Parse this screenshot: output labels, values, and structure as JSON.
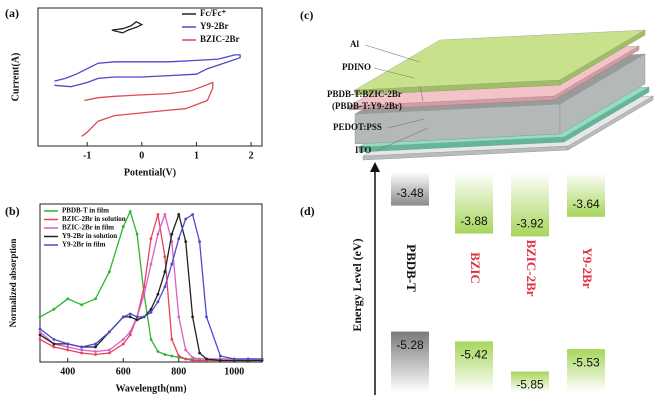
{
  "chart_data": [
    {
      "type": "line",
      "label": "(a)",
      "xlabel": "Potential(V)",
      "ylabel": "Current(A)",
      "xlim": [
        -1.9,
        2.2
      ],
      "xticks": [
        -1,
        0,
        1,
        2
      ],
      "ylim": [
        0,
        1
      ],
      "series": [
        {
          "name": "Fc/Fc⁺",
          "color": "#222222",
          "x": [
            -0.55,
            -0.35,
            -0.2,
            -0.1,
            0.0,
            -0.1,
            -0.25,
            -0.35,
            -0.45,
            -0.55
          ],
          "values": [
            0.84,
            0.85,
            0.87,
            0.9,
            0.88,
            0.86,
            0.84,
            0.82,
            0.83,
            0.84
          ]
        },
        {
          "name": "Y9-2Br",
          "color": "#4a4ac8",
          "x": [
            -1.6,
            -1.4,
            -1.2,
            -1.0,
            -0.8,
            -0.5,
            0,
            0.5,
            1.0,
            1.4,
            1.7,
            1.8,
            1.8,
            1.5,
            1.2,
            1.0,
            0.5,
            0,
            -0.5,
            -0.8,
            -1.0,
            -1.3,
            -1.6
          ],
          "values": [
            0.47,
            0.49,
            0.52,
            0.56,
            0.6,
            0.61,
            0.61,
            0.61,
            0.62,
            0.63,
            0.66,
            0.66,
            0.64,
            0.6,
            0.56,
            0.52,
            0.51,
            0.5,
            0.5,
            0.49,
            0.46,
            0.43,
            0.44
          ]
        },
        {
          "name": "BZIC-2Br",
          "color": "#e04858",
          "x": [
            -1.05,
            -0.8,
            -0.5,
            0,
            0.5,
            0.9,
            1.1,
            1.3,
            1.3,
            1.2,
            1.0,
            0.8,
            0.5,
            0,
            -0.5,
            -0.8,
            -1.0,
            -1.1
          ],
          "values": [
            0.33,
            0.35,
            0.36,
            0.37,
            0.38,
            0.4,
            0.43,
            0.46,
            0.42,
            0.33,
            0.3,
            0.27,
            0.26,
            0.24,
            0.22,
            0.18,
            0.1,
            0.07
          ]
        }
      ]
    },
    {
      "type": "line",
      "label": "(b)",
      "xlabel": "Wavelength(nm)",
      "ylabel": "Normalized absorption",
      "xlim": [
        300,
        1100
      ],
      "xticks": [
        400,
        600,
        800,
        1000
      ],
      "ylim": [
        0,
        1.05
      ],
      "x": [
        300,
        350,
        400,
        450,
        500,
        550,
        600,
        625,
        650,
        675,
        700,
        725,
        750,
        775,
        800,
        825,
        850,
        875,
        900,
        950,
        1000,
        1050,
        1100
      ],
      "series": [
        {
          "name": "PBDB-T in film",
          "color": "#2db52d",
          "values": [
            0.3,
            0.35,
            0.42,
            0.38,
            0.42,
            0.6,
            0.9,
            1.0,
            0.85,
            0.45,
            0.15,
            0.07,
            0.05,
            0.04,
            0.03,
            0.02,
            0.02,
            0.02,
            0.02,
            0.02,
            0.02,
            0.02,
            0.02
          ]
        },
        {
          "name": "BZIC-2Br in solution",
          "color": "#e8425a",
          "values": [
            0.15,
            0.1,
            0.08,
            0.06,
            0.05,
            0.06,
            0.12,
            0.18,
            0.3,
            0.5,
            0.82,
            0.98,
            0.7,
            0.15,
            0.04,
            0.02,
            0.01,
            0.01,
            0.01,
            0.01,
            0.01,
            0.01,
            0.01
          ]
        },
        {
          "name": "BZIC-2Br in film",
          "color": "#d860c8",
          "values": [
            0.2,
            0.12,
            0.1,
            0.08,
            0.07,
            0.08,
            0.15,
            0.2,
            0.3,
            0.45,
            0.65,
            0.85,
            0.98,
            0.8,
            0.3,
            0.08,
            0.03,
            0.02,
            0.02,
            0.02,
            0.02,
            0.02,
            0.02
          ]
        },
        {
          "name": "Y9-2Br in solution",
          "color": "#222222",
          "values": [
            0.18,
            0.12,
            0.12,
            0.1,
            0.1,
            0.2,
            0.3,
            0.3,
            0.28,
            0.3,
            0.35,
            0.45,
            0.6,
            0.85,
            0.98,
            0.8,
            0.3,
            0.06,
            0.02,
            0.01,
            0.01,
            0.01,
            0.01
          ]
        },
        {
          "name": "Y9-2Br in film",
          "color": "#4a4ad0",
          "values": [
            0.22,
            0.15,
            0.12,
            0.1,
            0.12,
            0.2,
            0.3,
            0.32,
            0.3,
            0.3,
            0.33,
            0.4,
            0.5,
            0.65,
            0.82,
            0.95,
            0.98,
            0.8,
            0.3,
            0.04,
            0.02,
            0.02,
            0.02
          ]
        }
      ]
    }
  ],
  "device": {
    "label": "(c)",
    "layers": [
      [
        "Al"
      ],
      [
        "PDINO"
      ],
      [
        "PBDB-T:BZIC-2Br",
        "(PBDB-T:Y9-2Br)"
      ],
      [
        "PEDOT:PSS"
      ],
      [
        "ITO"
      ]
    ]
  },
  "energy_levels": {
    "label": "(d)",
    "axis_label": "Energy  Level (eV)",
    "materials": [
      {
        "name": "PBDB-T",
        "color": "#111111",
        "lumo": -3.48,
        "homo": -5.28
      },
      {
        "name": "BZIC",
        "color": "#e03040",
        "lumo": -3.88,
        "homo": -5.42
      },
      {
        "name": "BZIC-2Br",
        "color": "#e03040",
        "lumo": -3.92,
        "homo": -5.85
      },
      {
        "name": "Y9-2Br",
        "color": "#e03040",
        "lumo": -3.64,
        "homo": -5.53
      }
    ]
  }
}
